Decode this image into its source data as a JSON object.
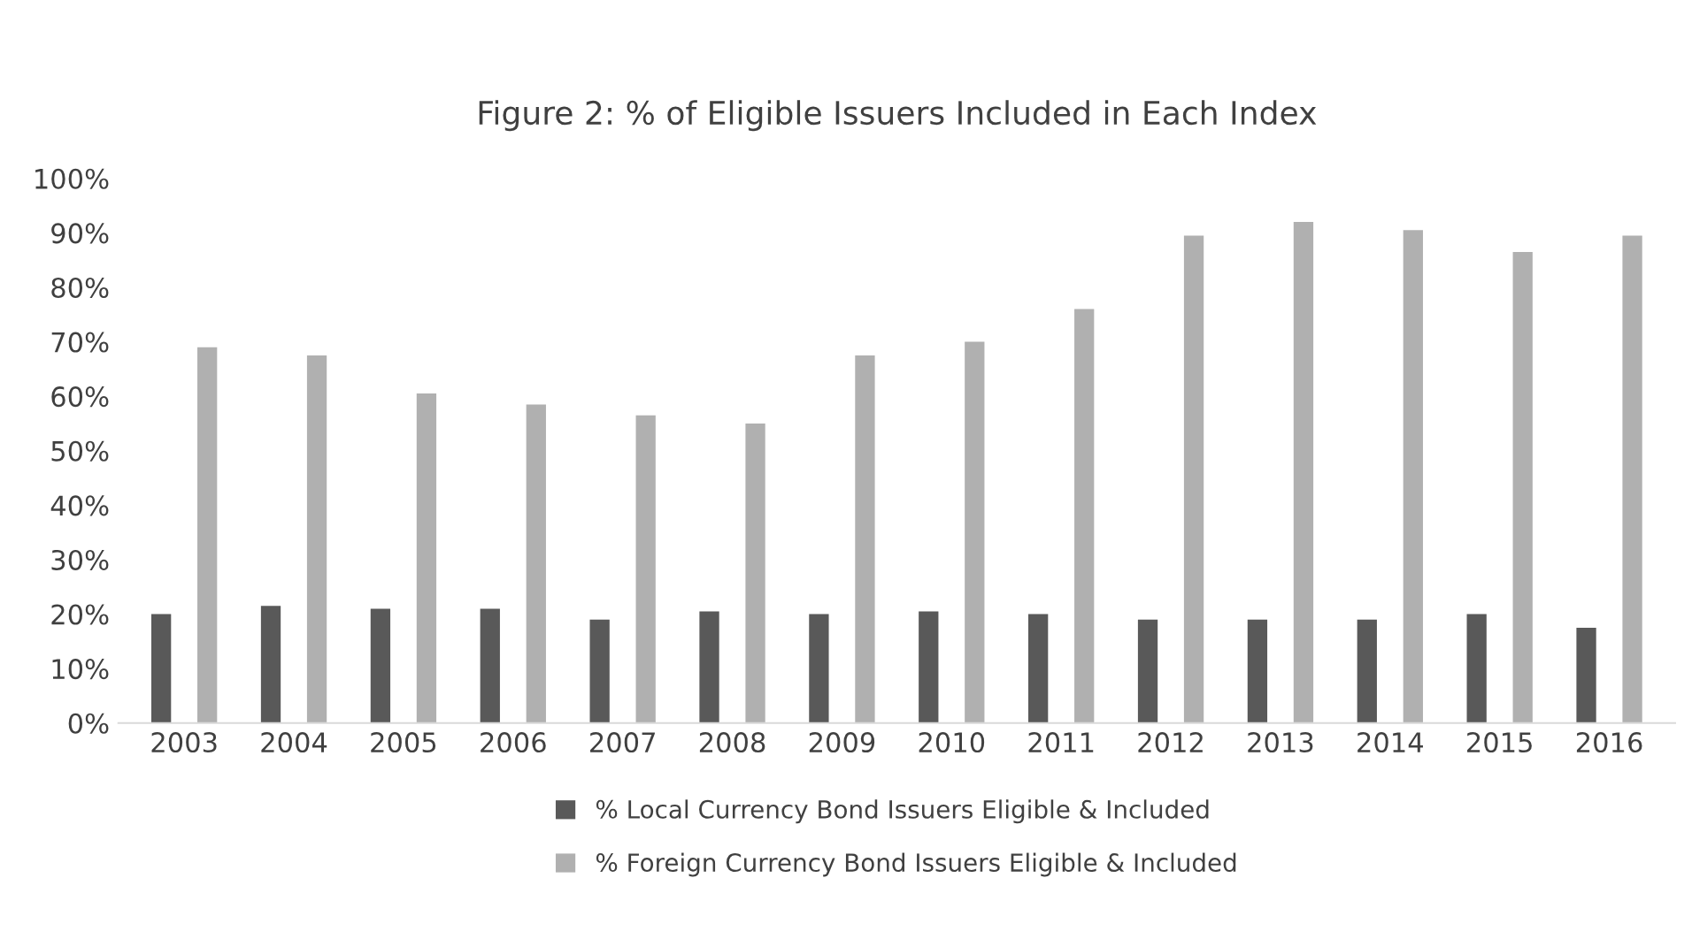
{
  "chart_data": {
    "type": "bar",
    "title": "Figure 2: % of Eligible Issuers Included in Each Index",
    "categories": [
      "2003",
      "2004",
      "2005",
      "2006",
      "2007",
      "2008",
      "2009",
      "2010",
      "2011",
      "2012",
      "2013",
      "2014",
      "2015",
      "2016"
    ],
    "series": [
      {
        "name": "% Local Currency Bond Issuers Eligible & Included",
        "color": "#595959",
        "values": [
          20,
          21.5,
          21,
          21,
          19,
          20.5,
          20,
          20.5,
          20,
          19,
          19,
          19,
          20,
          17.5
        ]
      },
      {
        "name": "% Foreign Currency Bond Issuers Eligible & Included",
        "color": "#b0b0b0",
        "values": [
          69,
          67.5,
          60.5,
          58.5,
          56.5,
          55,
          67.5,
          70,
          76,
          89.5,
          92,
          90.5,
          86.5,
          89.5
        ]
      }
    ],
    "ylim": [
      0,
      100
    ],
    "yticks": [
      {
        "value": 0,
        "label": "0%"
      },
      {
        "value": 10,
        "label": "10%"
      },
      {
        "value": 20,
        "label": "20%"
      },
      {
        "value": 30,
        "label": "30%"
      },
      {
        "value": 40,
        "label": "40%"
      },
      {
        "value": 50,
        "label": "50%"
      },
      {
        "value": 60,
        "label": "60%"
      },
      {
        "value": 70,
        "label": "70%"
      },
      {
        "value": 80,
        "label": "80%"
      },
      {
        "value": 90,
        "label": "90%"
      },
      {
        "value": 100,
        "label": "100%"
      }
    ],
    "grid": false,
    "legend": "bottom"
  }
}
